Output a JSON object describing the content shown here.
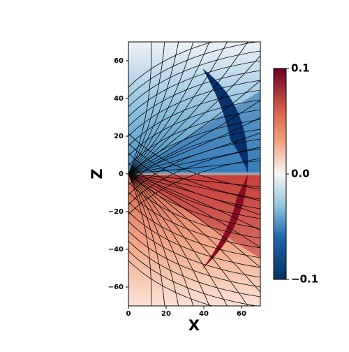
{
  "chart_data": {
    "type": "field",
    "xlabel": "X",
    "ylabel": "Z",
    "xlim": [
      0,
      70
    ],
    "ylim": [
      -70,
      70
    ],
    "xticks": [
      0,
      20,
      40,
      60
    ],
    "yticks": [
      {
        "value": -60,
        "label": "−60"
      },
      {
        "value": -40,
        "label": "−40"
      },
      {
        "value": -20,
        "label": "−20"
      },
      0,
      20,
      40,
      60
    ],
    "colormap": "RdBu_r",
    "clim": [
      -0.1,
      0.1
    ],
    "cticks": [
      {
        "value": -0.1,
        "label": "−0.1"
      },
      {
        "value": 0,
        "label": "0.0"
      },
      0.1
    ]
  }
}
